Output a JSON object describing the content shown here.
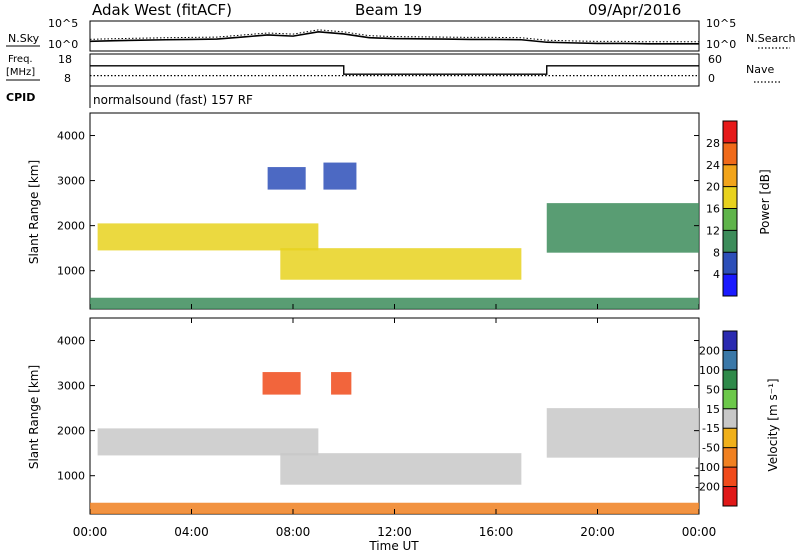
{
  "header": {
    "station": "Adak West (fitACF)",
    "beam": "Beam 19",
    "date": "09/Apr/2016",
    "cpid_text": "normalsound (fast) 157 RF"
  },
  "labels": {
    "nsky": "N.Sky",
    "nsearch": "N.Search",
    "freq_line1": "Freq.",
    "freq_line2": "[MHz]",
    "nave": "Nave",
    "cpid": "CPID"
  },
  "noise_ticks": [
    "10^5",
    "10^0"
  ],
  "freq_ticks": [
    "18",
    "8"
  ],
  "nave_ticks": [
    "60",
    "0"
  ],
  "colors": {
    "power": [
      "#1a1aff",
      "#2d4fb8",
      "#3c8c5a",
      "#5fb44a",
      "#e8d21e",
      "#f2a41a",
      "#f06a1a",
      "#e61a1a"
    ],
    "velocity": [
      "#2a2ab0",
      "#3a78a8",
      "#2f8a4a",
      "#6cc84a",
      "#c8c8c8",
      "#f0b01a",
      "#f08020",
      "#f04a1a",
      "#e01818"
    ],
    "ground": "#c8c8c8",
    "frame": "#000000"
  },
  "chart_data": [
    {
      "type": "line",
      "name": "noise-panel",
      "ylabel": "N.Sky",
      "y2label": "N.Search",
      "yscale": "log",
      "ylim": [
        1,
        100000
      ],
      "xlim": [
        "00:00",
        "24:00"
      ],
      "x": [
        0,
        1,
        2,
        3,
        4,
        5,
        6,
        7,
        8,
        9,
        10,
        11,
        12,
        13,
        14,
        15,
        16,
        17,
        18,
        19,
        20,
        21,
        22,
        23,
        24
      ],
      "series": [
        {
          "values": [
            30,
            40,
            50,
            60,
            70,
            80,
            200,
            500,
            300,
            2000,
            800,
            150,
            100,
            90,
            80,
            70,
            70,
            60,
            20,
            15,
            12,
            12,
            10,
            10,
            10
          ]
        }
      ]
    },
    {
      "type": "line",
      "name": "freq-nave-panel",
      "ylabel": "Freq. [MHz]",
      "y2label": "Nave",
      "ylim": [
        8,
        18
      ],
      "y2lim": [
        0,
        60
      ],
      "xlim": [
        "00:00",
        "24:00"
      ],
      "series": [
        {
          "x": [
            0,
            10,
            10,
            18,
            18,
            24
          ],
          "values": [
            14.5,
            14.5,
            11.5,
            11.5,
            14.5,
            14.5
          ]
        },
        {
          "x": [
            0,
            24
          ],
          "values": [
            11,
            11
          ]
        }
      ]
    },
    {
      "type": "heatmap",
      "name": "power-panel",
      "ylabel": "Slant Range [km]",
      "xlim": [
        "00:00",
        "24:00"
      ],
      "ylim": [
        150,
        4500
      ],
      "yticks": [
        "1000",
        "2000",
        "3000",
        "4000"
      ],
      "colorbar_label": "Power [dB]",
      "colorbar_ticks": [
        "4",
        "8",
        "12",
        "16",
        "20",
        "24",
        "28"
      ],
      "echo_regions": [
        {
          "t": [
            0.3,
            9.0
          ],
          "r": [
            1450,
            2050
          ],
          "level_dB": 16
        },
        {
          "t": [
            7.0,
            8.5
          ],
          "r": [
            2800,
            3300
          ],
          "level_dB": 6
        },
        {
          "t": [
            9.2,
            10.5
          ],
          "r": [
            2800,
            3400
          ],
          "level_dB": 6
        },
        {
          "t": [
            7.5,
            17.0
          ],
          "r": [
            800,
            1500
          ],
          "level_dB": 18
        },
        {
          "t": [
            18.0,
            24.0
          ],
          "r": [
            1400,
            2500
          ],
          "level_dB": 8
        },
        {
          "t": [
            0.0,
            24.0
          ],
          "r": [
            150,
            400
          ],
          "level_dB": 10
        }
      ]
    },
    {
      "type": "heatmap",
      "name": "velocity-panel",
      "ylabel": "Slant Range [km]",
      "xlabel": "Time UT",
      "xlim": [
        "00:00",
        "24:00"
      ],
      "xticks": [
        "00:00",
        "04:00",
        "08:00",
        "12:00",
        "16:00",
        "20:00",
        "00:00"
      ],
      "ylim": [
        150,
        4500
      ],
      "yticks": [
        "1000",
        "2000",
        "3000",
        "4000"
      ],
      "colorbar_label": "Velocity [m s⁻¹]",
      "colorbar_ticks": [
        "200",
        "100",
        "50",
        "15",
        "-15",
        "-50",
        "-100",
        "-200"
      ],
      "echo_regions": [
        {
          "t": [
            0.3,
            9.0
          ],
          "r": [
            1450,
            2050
          ],
          "velocity": 0
        },
        {
          "t": [
            6.8,
            8.3
          ],
          "r": [
            2800,
            3300
          ],
          "velocity": -150
        },
        {
          "t": [
            9.5,
            10.3
          ],
          "r": [
            2800,
            3300
          ],
          "velocity": -150
        },
        {
          "t": [
            7.5,
            17.0
          ],
          "r": [
            800,
            1500
          ],
          "velocity": 0
        },
        {
          "t": [
            18.0,
            24.0
          ],
          "r": [
            1400,
            2500
          ],
          "velocity": 0
        },
        {
          "t": [
            0.0,
            24.0
          ],
          "r": [
            150,
            400
          ],
          "velocity": -40
        }
      ]
    }
  ]
}
